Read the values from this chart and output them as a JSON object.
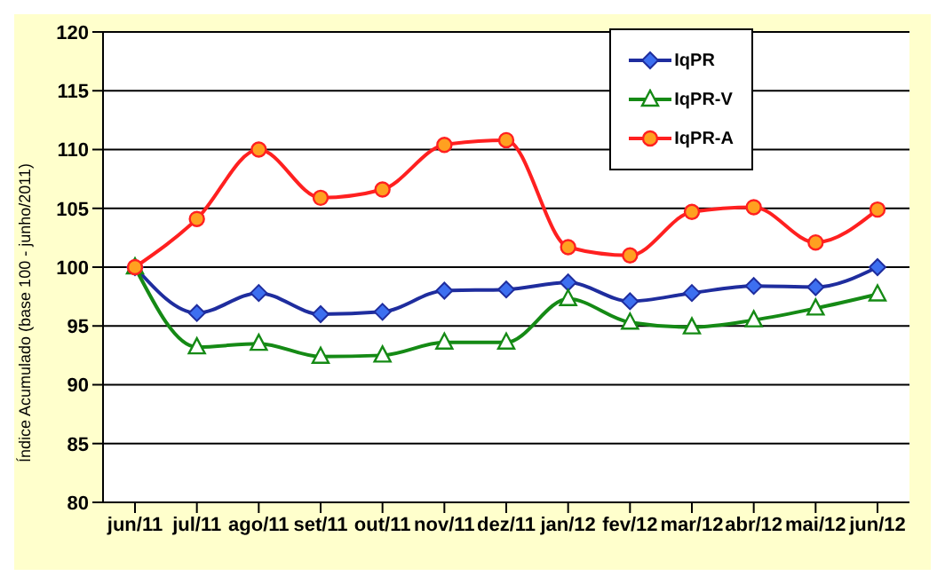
{
  "chart_data": {
    "type": "line",
    "ylabel": "Índice Acumulado (base 100 - junho/2011)",
    "categories": [
      "jun/11",
      "jul/11",
      "ago/11",
      "set/11",
      "out/11",
      "nov/11",
      "dez/11",
      "jan/12",
      "fev/12",
      "mar/12",
      "abr/12",
      "mai/12",
      "jun/12"
    ],
    "series": [
      {
        "name": "IqPR",
        "color": "#1f2d9e",
        "marker": "diamond",
        "values": [
          100,
          96.1,
          97.8,
          96.0,
          96.2,
          98.0,
          98.1,
          98.7,
          97.1,
          97.8,
          98.4,
          98.3,
          100
        ]
      },
      {
        "name": "IqPR-V",
        "color": "#158a15",
        "marker": "triangle",
        "values": [
          100,
          93.2,
          93.5,
          92.4,
          92.5,
          93.6,
          93.6,
          97.3,
          95.3,
          94.9,
          95.5,
          96.5,
          97.7
        ]
      },
      {
        "name": "IqPR-A",
        "color": "#ff2020",
        "marker": "circle",
        "values": [
          100,
          104.1,
          110.0,
          105.9,
          106.6,
          110.4,
          110.8,
          101.7,
          101.0,
          104.7,
          105.1,
          102.1,
          104.9
        ]
      }
    ],
    "ylim": [
      80,
      120
    ],
    "yticks": [
      80,
      85,
      90,
      95,
      100,
      105,
      110,
      115,
      120
    ],
    "grid": "y",
    "legend": "top right"
  }
}
